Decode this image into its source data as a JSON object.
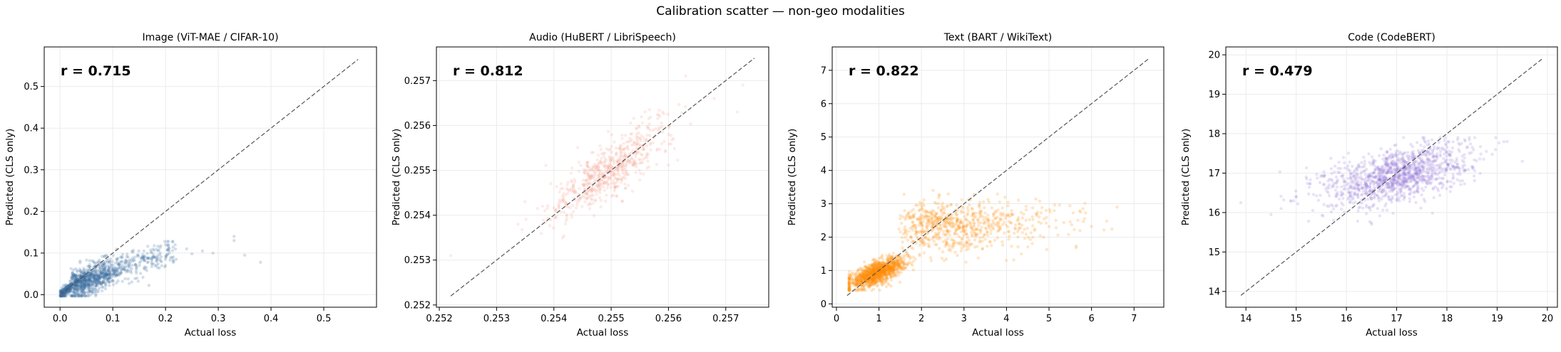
{
  "figure": {
    "suptitle": "Calibration scatter — non-geo modalities"
  },
  "chart_data": [
    {
      "type": "scatter",
      "title": "Image (ViT-MAE / CIFAR-10)",
      "xlabel": "Actual loss",
      "ylabel": "Predicted (CLS only)",
      "annotation": "r = 0.715",
      "color": "#3a6f9f",
      "xlim": [
        -0.03,
        0.6
      ],
      "ylim": [
        -0.03,
        0.595
      ],
      "xticks": [
        0.0,
        0.1,
        0.2,
        0.3,
        0.4,
        0.5
      ],
      "xtick_labels": [
        "0.0",
        "0.1",
        "0.2",
        "0.3",
        "0.4",
        "0.5"
      ],
      "yticks": [
        0.0,
        0.1,
        0.2,
        0.3,
        0.4,
        0.5
      ],
      "ytick_labels": [
        "0.0",
        "0.1",
        "0.2",
        "0.3",
        "0.4",
        "0.5"
      ],
      "diagonal": [
        0.0,
        0.565
      ],
      "grid": true,
      "points_summary": {
        "n": 1200,
        "x_mode": 0.05,
        "x_max": 0.38,
        "y_center": 0.05,
        "y_max": 0.16,
        "description": "dense cluster near origin (0–0.15), sparse tail to x≈0.38 with predicted ≈0.08–0.12"
      }
    },
    {
      "type": "scatter",
      "title": "Audio (HuBERT / LibriSpeech)",
      "xlabel": "Actual loss",
      "ylabel": "Predicted (CLS only)",
      "annotation": "r = 0.812",
      "color": "#f4a593",
      "xlim": [
        0.25195,
        0.25775
      ],
      "ylim": [
        0.25195,
        0.25775
      ],
      "xticks": [
        0.252,
        0.253,
        0.254,
        0.255,
        0.256,
        0.257
      ],
      "xtick_labels": [
        "0.252",
        "0.253",
        "0.254",
        "0.255",
        "0.256",
        "0.257"
      ],
      "yticks": [
        0.252,
        0.253,
        0.254,
        0.255,
        0.256,
        0.257
      ],
      "ytick_labels": [
        "0.252",
        "0.253",
        "0.254",
        "0.255",
        "0.256",
        "0.257"
      ],
      "diagonal": [
        0.2522,
        0.2575
      ],
      "grid": true,
      "points_summary": {
        "n": 650,
        "x_center": 0.255,
        "y_center": 0.255,
        "description": "elongated cloud along diagonal from ~(0.2532,0.2535) to ~(0.2562,0.2565)"
      }
    },
    {
      "type": "scatter",
      "title": "Text (BART / WikiText)",
      "xlabel": "Actual loss",
      "ylabel": "Predicted (CLS only)",
      "annotation": "r = 0.822",
      "color": "#ff8c0a",
      "xlim": [
        -0.1,
        7.7
      ],
      "ylim": [
        -0.1,
        7.7
      ],
      "xticks": [
        0,
        1,
        2,
        3,
        4,
        5,
        6,
        7
      ],
      "xtick_labels": [
        "0",
        "1",
        "2",
        "3",
        "4",
        "5",
        "6",
        "7"
      ],
      "yticks": [
        0,
        1,
        2,
        3,
        4,
        5,
        6,
        7
      ],
      "ytick_labels": [
        "0",
        "1",
        "2",
        "3",
        "4",
        "5",
        "6",
        "7"
      ],
      "diagonal": [
        0.25,
        7.35
      ],
      "grid": true,
      "points_summary": {
        "n": 1800,
        "x_range": [
          0.3,
          6.5
        ],
        "y_range": [
          0.4,
          3.4
        ],
        "description": "dense cluster at (0.5–1.5, 0.6–1.3), broad plateau at predicted ≈2–3 for actual 1.5–6.5"
      }
    },
    {
      "type": "scatter",
      "title": "Code (CodeBERT)",
      "xlabel": "Actual loss",
      "ylabel": "Predicted (CLS only)",
      "annotation": "r = 0.479",
      "color": "#9b7fdc",
      "xlim": [
        13.6,
        20.2
      ],
      "ylim": [
        13.6,
        20.2
      ],
      "xticks": [
        14,
        15,
        16,
        17,
        18,
        19,
        20
      ],
      "xtick_labels": [
        "14",
        "15",
        "16",
        "17",
        "18",
        "19",
        "20"
      ],
      "yticks": [
        14,
        15,
        16,
        17,
        18,
        19,
        20
      ],
      "ytick_labels": [
        "14",
        "15",
        "16",
        "17",
        "18",
        "19",
        "20"
      ],
      "diagonal": [
        13.9,
        19.9
      ],
      "grid": true,
      "points_summary": {
        "n": 1300,
        "x_center": 17.0,
        "y_center": 16.95,
        "x_range": [
          13.9,
          19.5
        ],
        "y_range": [
          15.7,
          17.9
        ],
        "description": "wide horizontal cloud centered near (17, 17), weakly correlated"
      }
    }
  ]
}
